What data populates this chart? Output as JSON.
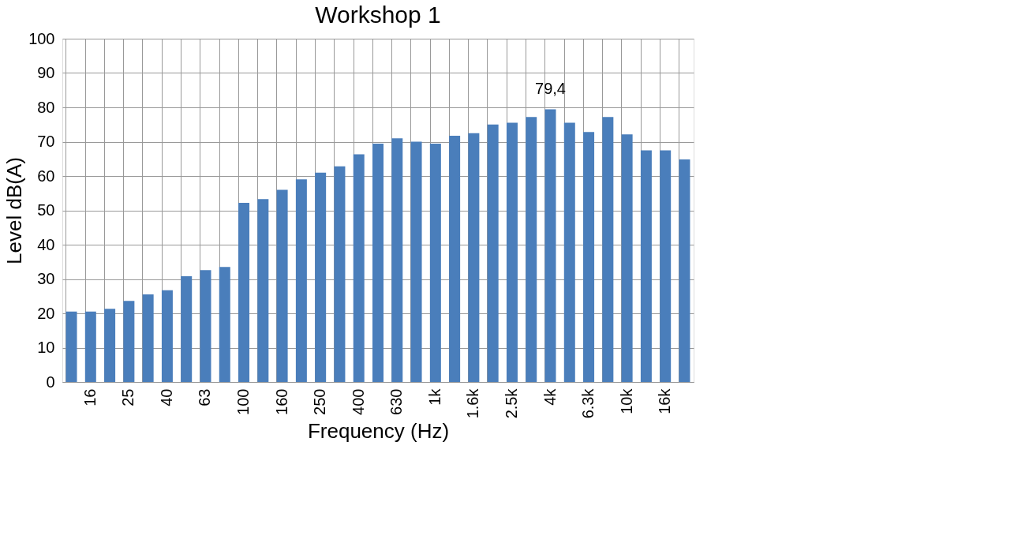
{
  "chart_data": {
    "type": "bar",
    "title": "Workshop 1",
    "xlabel": "Frequency (Hz)",
    "ylabel": "Level dB(A)",
    "categories": [
      null,
      "16",
      null,
      "25",
      null,
      "40",
      null,
      "63",
      null,
      "100",
      null,
      "160",
      null,
      "250",
      null,
      "400",
      null,
      "630",
      null,
      "1k",
      null,
      "1.6k",
      null,
      "2.5k",
      null,
      "4k",
      null,
      "6.3k",
      null,
      "10k",
      null,
      "16k",
      null
    ],
    "values": [
      20.5,
      20.5,
      21.3,
      23.6,
      25.5,
      26.7,
      30.8,
      32.6,
      33.5,
      52.2,
      53.3,
      56,
      59,
      61,
      62.8,
      66.3,
      69.4,
      71,
      70,
      69.4,
      71.7,
      72.5,
      75,
      75.5,
      77.2,
      79.4,
      75.5,
      72.8,
      77.2,
      72.1,
      67.5,
      67.5,
      64.8
    ],
    "value_labels": [
      null,
      null,
      null,
      null,
      null,
      null,
      null,
      null,
      null,
      null,
      null,
      null,
      null,
      null,
      null,
      null,
      null,
      null,
      null,
      null,
      null,
      null,
      null,
      null,
      null,
      "79,4",
      null,
      null,
      null,
      null,
      null,
      null,
      null
    ],
    "color": "#4a7ebb",
    "ylim": [
      0,
      100
    ],
    "yticks": [
      0,
      10,
      20,
      30,
      40,
      50,
      60,
      70,
      80,
      90,
      100
    ],
    "grid": true
  }
}
